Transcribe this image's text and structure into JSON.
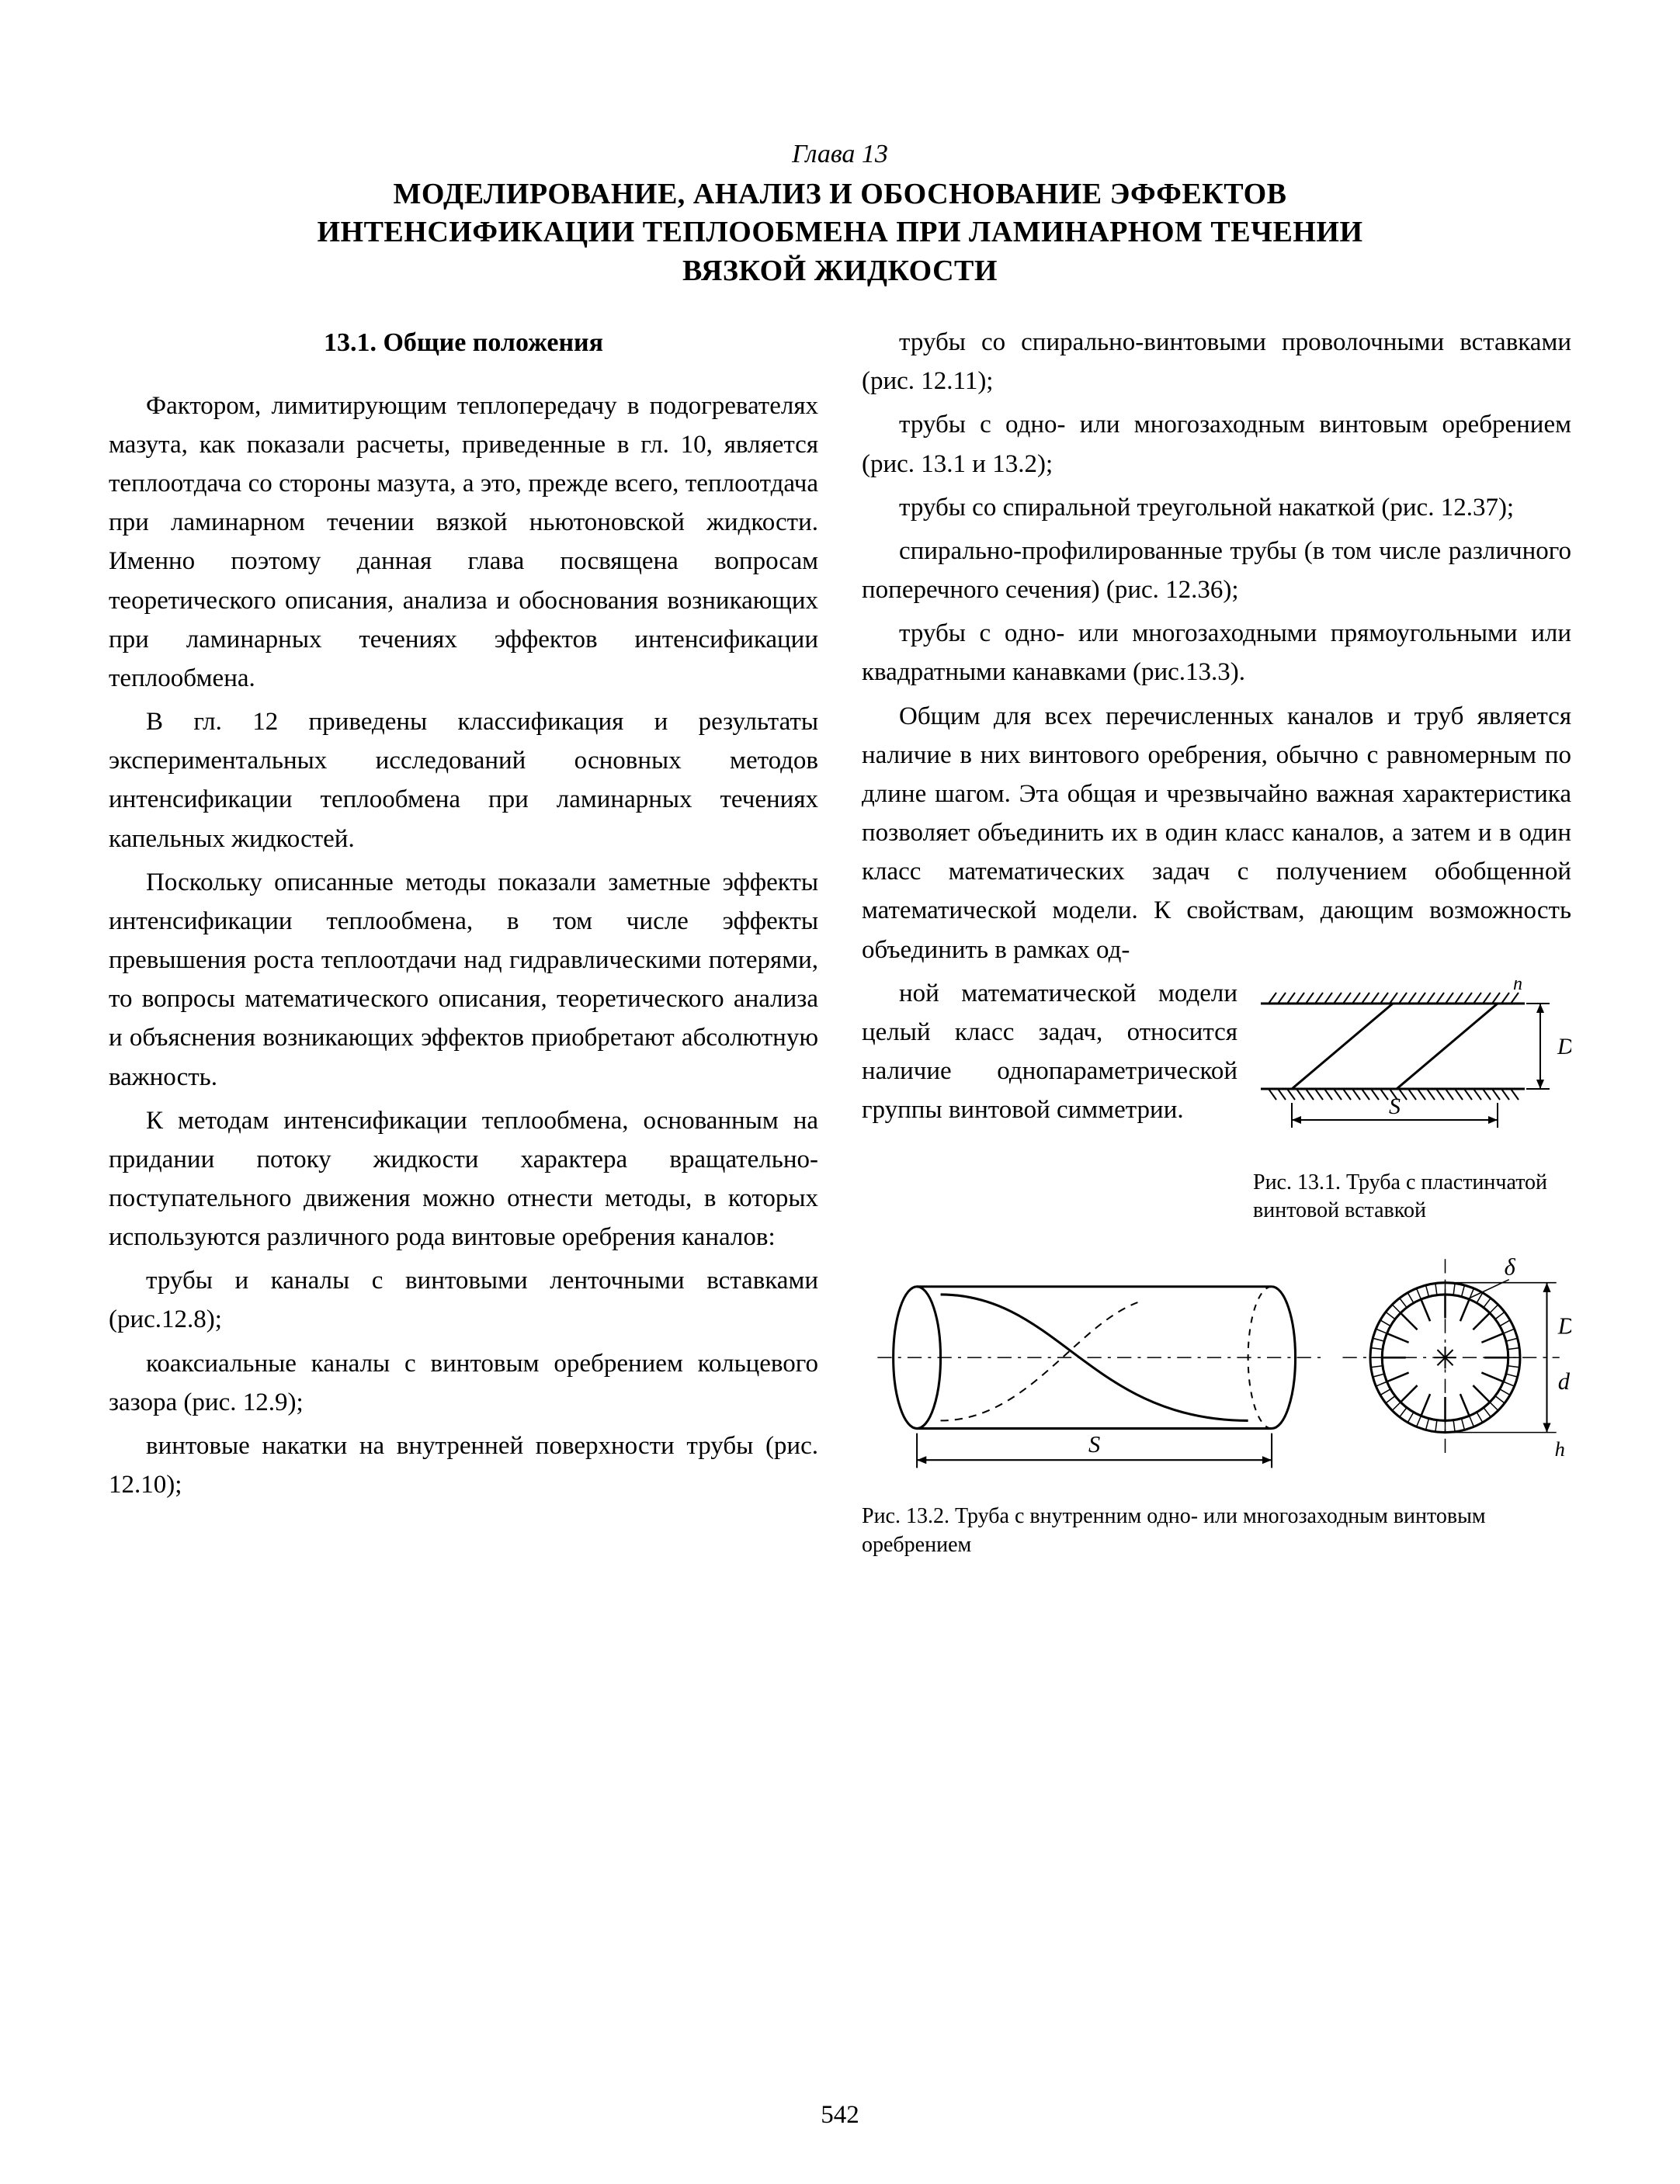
{
  "chapter_label": "Глава 13",
  "chapter_title_lines": [
    "МОДЕЛИРОВАНИЕ, АНАЛИЗ И ОБОСНОВАНИЕ ЭФФЕКТОВ",
    "ИНТЕНСИФИКАЦИИ ТЕПЛООБМЕНА ПРИ ЛАМИНАРНОМ ТЕЧЕНИИ",
    "ВЯЗКОЙ ЖИДКОСТИ"
  ],
  "section_heading": "13.1. Общие положения",
  "left_paragraphs": [
    "Фактором, лимитирующим теплопередачу в подогревателях мазута, как показали расчеты, приведенные в гл. 10, является теплоотдача со стороны мазута, а это, прежде всего, теплоотдача при ламинарном течении вязкой ньютоновской жидкости. Именно поэтому данная глава посвящена вопросам теоретического описания, анализа и обоснования возникающих при ламинарных течениях эффектов интенсификации теплообмена.",
    "В гл. 12 приведены классификация и результаты экспериментальных исследований основных методов интенсификации теплообмена при ламинарных течениях капельных жидкостей.",
    "Поскольку описанные методы показали заметные эффекты интенсификации теплообмена, в том числе эффекты превышения роста теплоотдачи над гидравлическими потерями, то вопросы математического описания, теоретического анализа и объяснения возникающих эффектов приобретают абсолютную важность.",
    "К методам интенсификации теплообмена, основанным на придании потоку жидкости характера вращательно-поступательного движения можно отнести методы, в которых используются различного рода винтовые оребрения каналов:",
    "трубы и каналы с винтовыми ленточными вставками (рис.12.8);",
    "коаксиальные каналы с винтовым оребрением кольцевого зазора (рис. 12.9);",
    "винтовые накатки на внутренней поверхности трубы (рис. 12.10);"
  ],
  "right_paragraphs_before_fig": [
    "трубы со спирально-винтовыми проволочными вставками (рис. 12.11);",
    "трубы с одно- или многозаходным винтовым оребрением (рис. 13.1 и 13.2);",
    "трубы со спиральной треугольной накаткой (рис. 12.37);",
    "спирально-профилированные трубы (в том числе различного поперечного сечения) (рис. 12.36);",
    "трубы с одно- или многозаходными прямоугольными или квадратными канавками (рис.13.3).",
    "Общим для всех перечисленных каналов и труб является наличие в них винтового оребрения, обычно с равномерным по длине шагом. Эта общая и чрезвычайно важная характеристика позволяет объединить их в один класс каналов, а затем и в один класс математических задач с получением обобщенной математической модели. К свойствам, дающим возможность объединить в рамках од-"
  ],
  "right_wrap_text": "ной математической модели целый класс задач, относится наличие однопараметрической группы винтовой симметрии.",
  "fig1_caption": "Рис. 13.1. Труба с пластинчатой винтовой вставкой",
  "fig2_caption": "Рис. 13.2. Труба с внутренним одно- или многозаходным винтовым оребрением",
  "page_number": "542",
  "fig1": {
    "type": "schematic",
    "stroke": "#000000",
    "stroke_width": 3,
    "hatch_gap": 12,
    "labels": {
      "S": "S",
      "D": "D",
      "h": "h"
    },
    "label_fontsize": 30,
    "label_fontstyle": "italic"
  },
  "fig2": {
    "type": "schematic",
    "stroke": "#000000",
    "stroke_width": 3,
    "hatch_gap": 10,
    "labels": {
      "S": "S",
      "D": "D",
      "d": "d",
      "delta": "δ",
      "h": "h"
    },
    "label_fontsize": 30,
    "label_fontstyle": "italic"
  }
}
